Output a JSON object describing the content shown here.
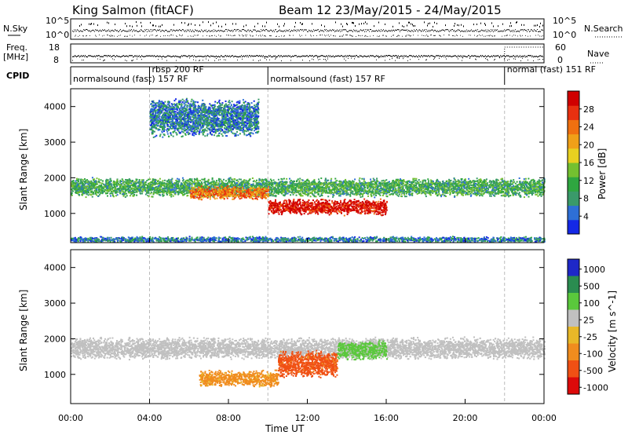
{
  "header": {
    "station": "King Salmon (fitACF)",
    "beam_date": "Beam 12 23/May/2015 - 24/May/2015"
  },
  "top_panels": {
    "nsky_label": "N.Sky",
    "nsky_ticks": [
      "10^5",
      "10^0"
    ],
    "nsearch_label": "N.Search",
    "nsearch_ticks": [
      "10^5",
      "10^0"
    ],
    "freq_label_1": "Freq.",
    "freq_label_2": "[MHz]",
    "freq_ticks": [
      "18",
      "8"
    ],
    "nave_label": "Nave",
    "nave_ticks": [
      "60",
      "0"
    ],
    "cpid_label": "CPID"
  },
  "cpid_segments": [
    {
      "label": "normalsound (fast) 157 RF",
      "start_h": 0.0,
      "end_h": 4.0
    },
    {
      "label": "rbsp 200 RF",
      "start_h": 4.0,
      "end_h": 10.0
    },
    {
      "label": "normalsound (fast) 157 RF",
      "start_h": 10.0,
      "end_h": 22.0
    },
    {
      "label": "normal (fast) 151 RF",
      "start_h": 22.0,
      "end_h": 24.0
    }
  ],
  "chart_data": [
    {
      "type": "heatmap",
      "panel": "power",
      "ylabel": "Slant Range [km]",
      "xlim_hours": [
        0,
        24
      ],
      "ylim": [
        180,
        4500
      ],
      "yticks": [
        1000,
        2000,
        3000,
        4000
      ],
      "colorbar": {
        "label": "Power [dB]",
        "ticks": [
          "4",
          "8",
          "12",
          "16",
          "20",
          "24",
          "28"
        ],
        "colors": [
          "#1428e6",
          "#2e6fd6",
          "#3a9a6a",
          "#2fa640",
          "#74c030",
          "#e8d020",
          "#f0a018",
          "#f07010",
          "#e83010",
          "#d00000"
        ]
      },
      "features": [
        {
          "name": "main band",
          "t_start": 0,
          "t_end": 24,
          "range_center_km": 1750,
          "range_width_km": 350,
          "power_db": 10
        },
        {
          "name": "enhanced band",
          "t_start": 6,
          "t_end": 10,
          "range_center_km": 1600,
          "range_width_km": 250,
          "power_db": 22
        },
        {
          "name": "strong echoes",
          "t_start": 10,
          "t_end": 16,
          "range_center_km": 1200,
          "range_width_km": 300,
          "power_db": 28
        },
        {
          "name": "upper echoes",
          "t_start": 4,
          "t_end": 9.5,
          "range_center_km": 3700,
          "range_width_km": 700,
          "power_db": 6
        },
        {
          "name": "near-range clutter",
          "t_start": 0,
          "t_end": 24,
          "range_center_km": 280,
          "range_width_km": 120,
          "power_db": 6
        }
      ]
    },
    {
      "type": "heatmap",
      "panel": "velocity",
      "xlabel": "Time UT",
      "ylabel": "Slant Range [km]",
      "xlim_hours": [
        0,
        24
      ],
      "ylim": [
        180,
        4500
      ],
      "yticks": [
        1000,
        2000,
        3000,
        4000
      ],
      "xtick_labels": [
        "00:00",
        "04:00",
        "08:00",
        "12:00",
        "16:00",
        "20:00",
        "00:00"
      ],
      "colorbar": {
        "label": "Velocity [m s^-1]",
        "ticks": [
          "1000",
          "500",
          "100",
          "25",
          "-25",
          "-100",
          "-500",
          "-1000"
        ],
        "colors": [
          "#1e28c8",
          "#2a8c50",
          "#5ac83c",
          "#c0c0c0",
          "#e8b828",
          "#f08c1e",
          "#f05014",
          "#dc0a0a"
        ]
      },
      "features": [
        {
          "name": "ground scatter band",
          "t_start": 0,
          "t_end": 24,
          "range_center_km": 1750,
          "range_width_km": 400,
          "velocity": 0
        },
        {
          "name": "negative flow",
          "t_start": 10.5,
          "t_end": 13.5,
          "range_center_km": 1300,
          "range_width_km": 500,
          "velocity": -500
        },
        {
          "name": "weak negative",
          "t_start": 6.5,
          "t_end": 10.5,
          "range_center_km": 900,
          "range_width_km": 300,
          "velocity": -100
        },
        {
          "name": "positive flow",
          "t_start": 13.5,
          "t_end": 16,
          "range_center_km": 1700,
          "range_width_km": 350,
          "velocity": 100
        }
      ]
    }
  ]
}
